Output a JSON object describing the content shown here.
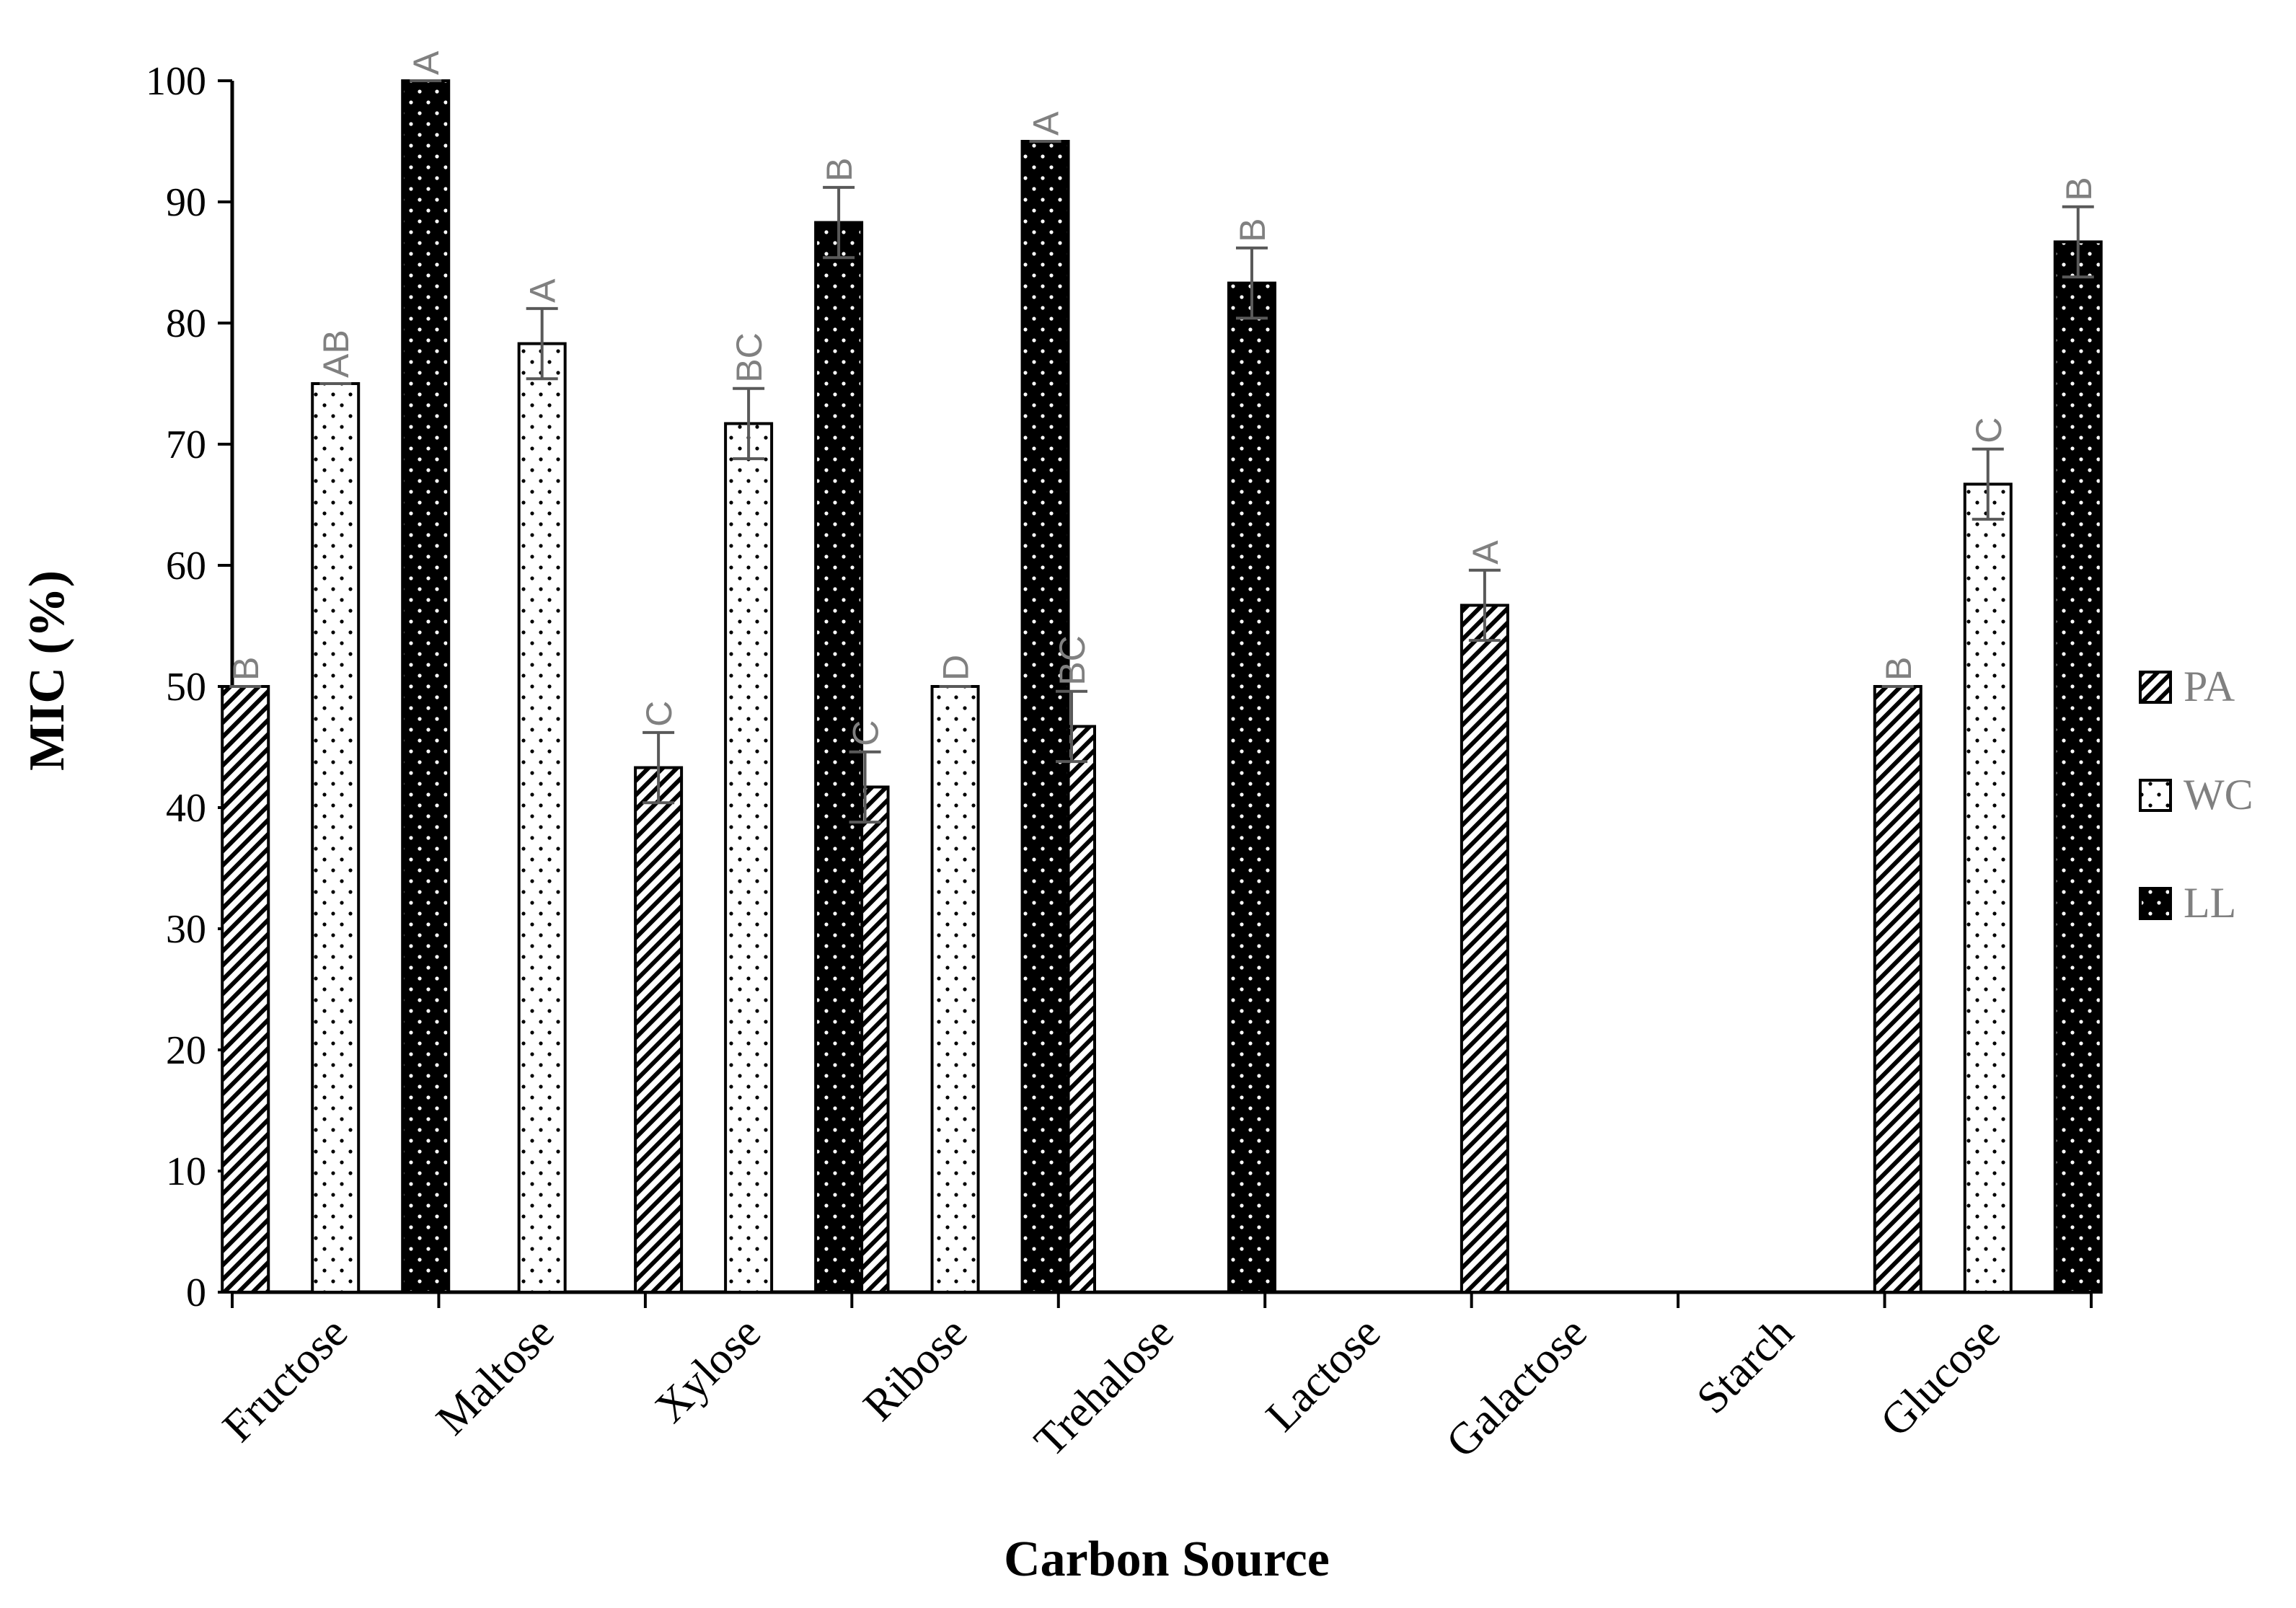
{
  "chart_data": {
    "type": "bar",
    "xlabel": "Carbon Source",
    "ylabel": "MIC (%)",
    "ylim": [
      0,
      100
    ],
    "yticks": [
      0,
      10,
      20,
      30,
      40,
      50,
      60,
      70,
      80,
      90,
      100
    ],
    "grid": false,
    "legend_position": "right",
    "categories": [
      "Fructose",
      "Maltose",
      "Xylose",
      "Ribose",
      "Trehalose",
      "Lactose",
      "Galactose",
      "Starch",
      "Glucose"
    ],
    "series": [
      {
        "name": "PA",
        "pattern": "diagonal-hatch",
        "values": [
          50,
          0,
          43.3,
          41.7,
          46.7,
          0,
          56.7,
          0,
          50
        ],
        "errors": [
          0,
          0,
          2.9,
          2.9,
          2.9,
          0,
          2.9,
          0,
          0
        ],
        "letters": [
          "B",
          "",
          "C",
          "C",
          "BC",
          "",
          "A",
          "",
          "B"
        ]
      },
      {
        "name": "WC",
        "pattern": "white-dots",
        "values": [
          75,
          78.3,
          71.7,
          50,
          0,
          0,
          0,
          0,
          66.7
        ],
        "errors": [
          0,
          2.9,
          2.9,
          0,
          0,
          0,
          0,
          0,
          2.9
        ],
        "letters": [
          "AB",
          "A",
          "BC",
          "D",
          "",
          "",
          "",
          "",
          "C"
        ]
      },
      {
        "name": "LL",
        "pattern": "black-dots",
        "values": [
          100,
          0,
          88.3,
          95,
          83.3,
          0,
          0,
          0,
          86.7
        ],
        "errors": [
          0,
          0,
          2.9,
          0,
          2.9,
          0,
          0,
          0,
          2.9
        ],
        "letters": [
          "A",
          "",
          "B",
          "A",
          "B",
          "",
          "",
          "",
          "B"
        ]
      }
    ]
  }
}
